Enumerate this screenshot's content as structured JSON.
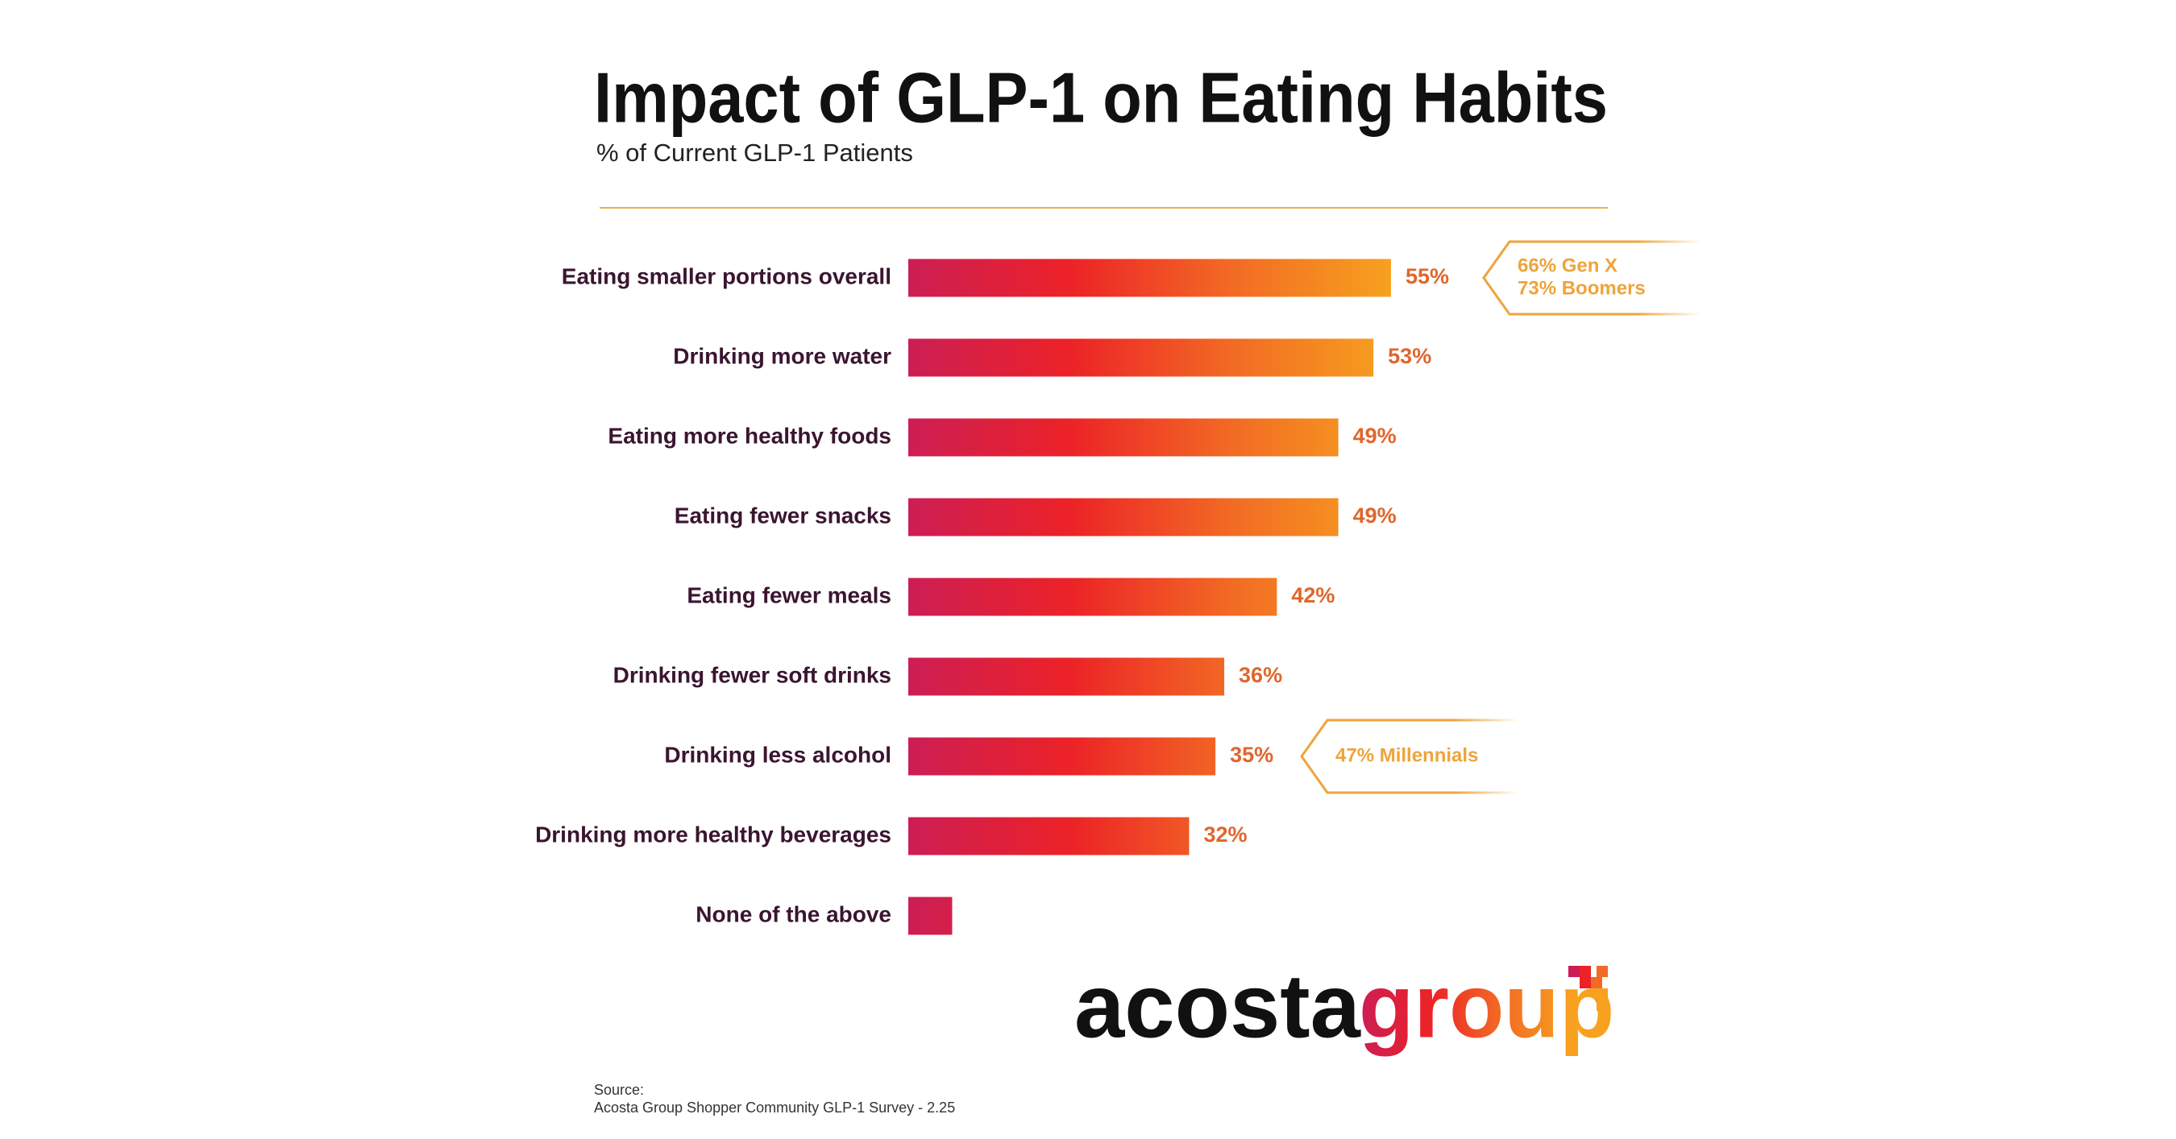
{
  "chart_data": {
    "type": "hbar",
    "title": "Impact of GLP-1 on Eating Habits",
    "subtitle": "% of Current GLP-1 Patients",
    "categories": [
      "Eating smaller portions overall",
      "Drinking more water",
      "Eating more healthy foods",
      "Eating fewer snacks",
      "Eating fewer meals",
      "Drinking fewer soft drinks",
      "Drinking less alcohol",
      "Drinking more healthy beverages",
      "None of the above"
    ],
    "values": [
      55,
      53,
      49,
      49,
      42,
      36,
      35,
      32,
      5
    ],
    "value_labels": [
      "55%",
      "53%",
      "49%",
      "49%",
      "42%",
      "36%",
      "35%",
      "32%",
      null
    ],
    "xlim": [
      0,
      100
    ],
    "color_stops": [
      "#cc1e55",
      "#ec2227",
      "#f26a24",
      "#f7a11f"
    ],
    "annotations": [
      [
        "66% Gen X",
        "73% Boomers"
      ],
      [
        "47% Millennials"
      ]
    ],
    "annotation_color": "#eea43a",
    "logo_text": [
      "acosta",
      "group"
    ],
    "source": [
      "Source:",
      "Acosta Group Shopper Community GLP-1 Survey - 2.25"
    ]
  }
}
